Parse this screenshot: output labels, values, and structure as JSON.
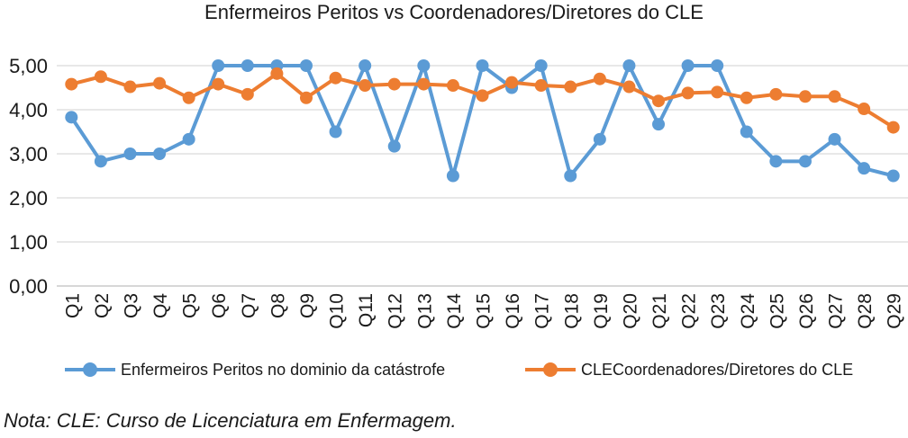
{
  "chart_data": {
    "type": "line",
    "title": "Enfermeiros Peritos vs Coordenadores/Diretores do CLE",
    "categories": [
      "Q1",
      "Q2",
      "Q3",
      "Q4",
      "Q5",
      "Q6",
      "Q7",
      "Q8",
      "Q9",
      "Q10",
      "Q11",
      "Q12",
      "Q13",
      "Q14",
      "Q15",
      "Q16",
      "Q17",
      "Q18",
      "Q19",
      "Q20",
      "Q21",
      "Q22",
      "Q23",
      "Q24",
      "Q25",
      "Q26",
      "Q27",
      "Q28",
      "Q29"
    ],
    "ylim": [
      0,
      5
    ],
    "yticks": [
      "0,00",
      "1,00",
      "2,00",
      "3,00",
      "4,00",
      "5,00"
    ],
    "grid": true,
    "legend_position": "bottom",
    "series": [
      {
        "name": "Enfermeiros Peritos no dominio da catástrofe",
        "color": "#5b9bd5",
        "values": [
          3.83,
          2.83,
          3.0,
          3.0,
          3.33,
          5.0,
          5.0,
          5.0,
          5.0,
          3.5,
          5.0,
          3.17,
          5.0,
          2.5,
          5.0,
          4.5,
          5.0,
          2.5,
          3.33,
          5.0,
          3.67,
          5.0,
          5.0,
          3.5,
          2.83,
          2.83,
          3.33,
          2.67,
          2.5
        ]
      },
      {
        "name": "CLECoordenadores/Diretores do CLE",
        "color": "#ed7d31",
        "values": [
          4.58,
          4.75,
          4.52,
          4.6,
          4.27,
          4.58,
          4.35,
          4.82,
          4.27,
          4.72,
          4.55,
          4.58,
          4.58,
          4.55,
          4.32,
          4.62,
          4.55,
          4.52,
          4.7,
          4.52,
          4.2,
          4.38,
          4.4,
          4.27,
          4.35,
          4.3,
          4.3,
          4.02,
          3.6
        ]
      }
    ]
  },
  "footnote": "Nota: CLE: Curso de Licenciatura em Enfermagem."
}
